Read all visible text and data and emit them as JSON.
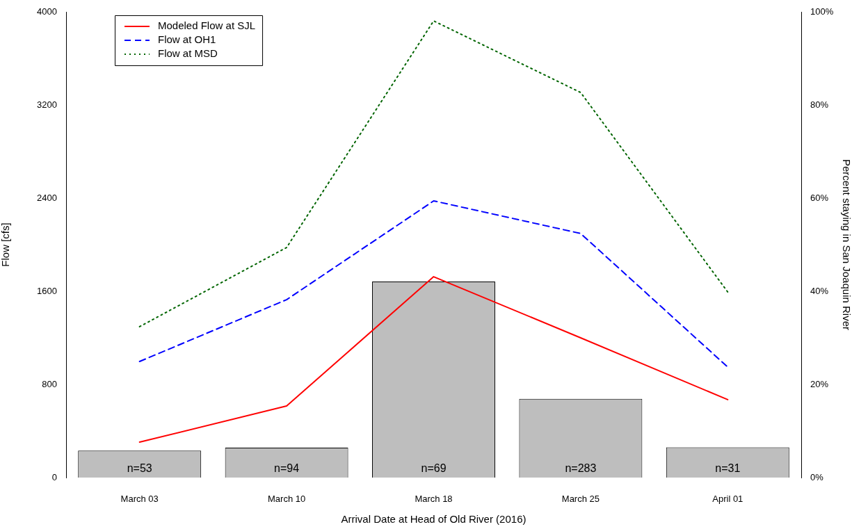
{
  "chart_data": {
    "type": "line",
    "xlabel": "Arrival Date at Head of Old River (2016)",
    "ylabel": "Flow [cfs]",
    "y2label": "Percent staying in San Joaquin River",
    "categories": [
      "March 03",
      "March 10",
      "March 18",
      "March 25",
      "April 01"
    ],
    "series": [
      {
        "type": "bar",
        "axis": "y2",
        "color": "#bebebe",
        "values": [
          5.8,
          6.4,
          42.1,
          16.9,
          6.5
        ]
      },
      {
        "name": "Modeled Flow at SJL",
        "color": "#ff0000",
        "line_style": "solid",
        "values": [
          304,
          615,
          1725,
          1200,
          669
        ]
      },
      {
        "name": "Flow at OH1",
        "color": "#0000ff",
        "line_style": "dashed",
        "values": [
          997,
          1528,
          2376,
          2096,
          949
        ]
      },
      {
        "name": "Flow at MSD",
        "color": "#006400",
        "line_style": "dotted",
        "values": [
          1296,
          1976,
          3922,
          3307,
          1594
        ]
      }
    ],
    "ylim": [
      0,
      4000
    ],
    "yticks": [
      0,
      800,
      1600,
      2400,
      3200,
      4000
    ],
    "y2lim": [
      0,
      100
    ],
    "y2ticks": [
      {
        "value": 0,
        "label": "0%"
      },
      {
        "value": 20,
        "label": "20%"
      },
      {
        "value": 40,
        "label": "40%"
      },
      {
        "value": 60,
        "label": "60%"
      },
      {
        "value": 80,
        "label": "80%"
      },
      {
        "value": 100,
        "label": "100%"
      }
    ],
    "annotations": [
      "n=53",
      "n=94",
      "n=69",
      "n=283",
      "n=31"
    ],
    "legend": "top left",
    "grid": false
  }
}
